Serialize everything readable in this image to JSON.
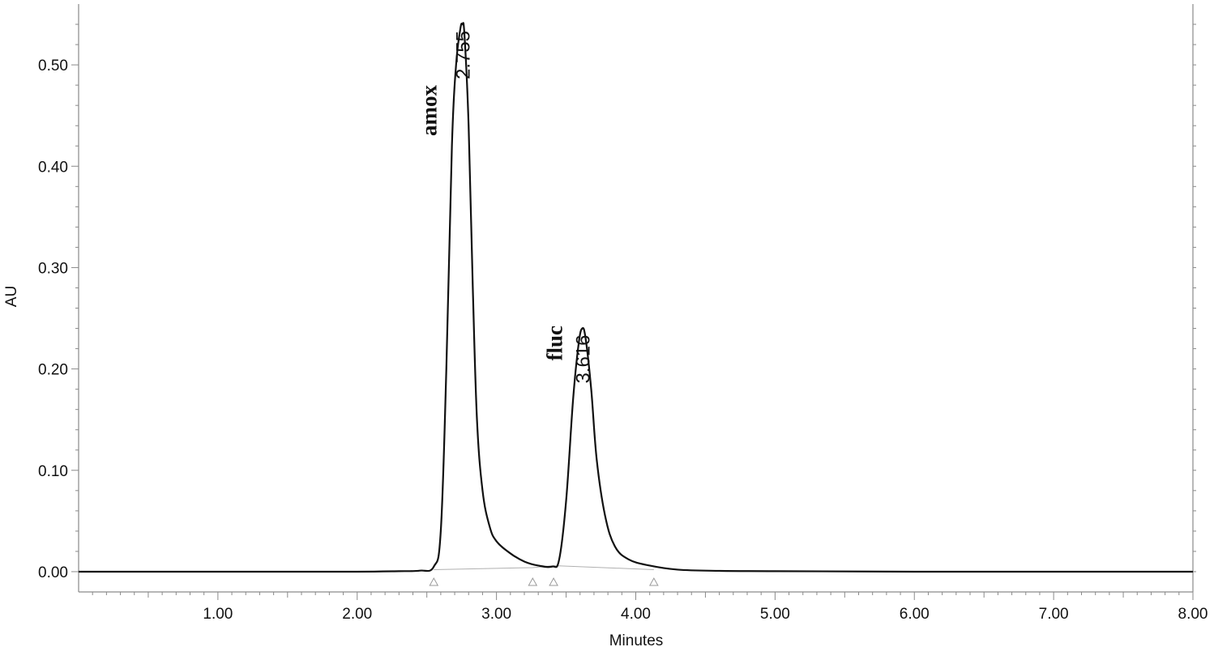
{
  "chart_data": {
    "type": "line",
    "title": "",
    "xlabel": "Minutes",
    "ylabel": "AU",
    "xlim": [
      0,
      8.0
    ],
    "ylim": [
      -0.02,
      0.56
    ],
    "x_ticks": [
      1.0,
      2.0,
      3.0,
      4.0,
      5.0,
      6.0,
      7.0,
      8.0
    ],
    "x_tick_labels": [
      "1.00",
      "2.00",
      "3.00",
      "4.00",
      "5.00",
      "6.00",
      "7.00",
      "8.00"
    ],
    "y_ticks": [
      0.0,
      0.1,
      0.2,
      0.3,
      0.4,
      0.5
    ],
    "y_tick_labels": [
      "0.00",
      "0.10",
      "0.20",
      "0.30",
      "0.40",
      "0.50"
    ],
    "grid": false,
    "legend": "none",
    "series": [
      {
        "x": [
          0.0,
          0.5,
          1.0,
          1.5,
          2.0,
          2.3,
          2.45,
          2.55,
          2.6,
          2.64,
          2.68,
          2.71,
          2.74,
          2.755,
          2.77,
          2.8,
          2.83,
          2.86,
          2.9,
          2.95,
          3.0,
          3.1,
          3.2,
          3.3,
          3.4,
          3.45,
          3.5,
          3.55,
          3.59,
          3.616,
          3.64,
          3.68,
          3.72,
          3.78,
          3.85,
          3.95,
          4.1,
          4.3,
          4.6,
          5.0,
          6.0,
          7.0,
          8.0
        ],
        "y": [
          0.0,
          0.0,
          0.0,
          0.0,
          0.0,
          0.0005,
          0.001,
          0.005,
          0.04,
          0.2,
          0.42,
          0.5,
          0.535,
          0.54,
          0.53,
          0.44,
          0.28,
          0.15,
          0.08,
          0.045,
          0.03,
          0.018,
          0.01,
          0.006,
          0.005,
          0.012,
          0.07,
          0.17,
          0.225,
          0.24,
          0.23,
          0.18,
          0.11,
          0.055,
          0.025,
          0.012,
          0.006,
          0.002,
          0.0008,
          0.0005,
          0.0,
          0.0,
          0.0
        ]
      }
    ],
    "baseline": {
      "x": [
        2.55,
        3.26,
        3.41,
        4.13
      ],
      "y": [
        0.002,
        0.004,
        0.006,
        0.002
      ]
    },
    "peaks": [
      {
        "rt": 2.755,
        "label": "2.755",
        "name": "amox",
        "height": 0.54
      },
      {
        "rt": 3.616,
        "label": "3.616",
        "name": "fluc",
        "height": 0.24
      }
    ],
    "integration_markers_x": [
      2.55,
      3.26,
      3.41,
      4.13
    ]
  }
}
